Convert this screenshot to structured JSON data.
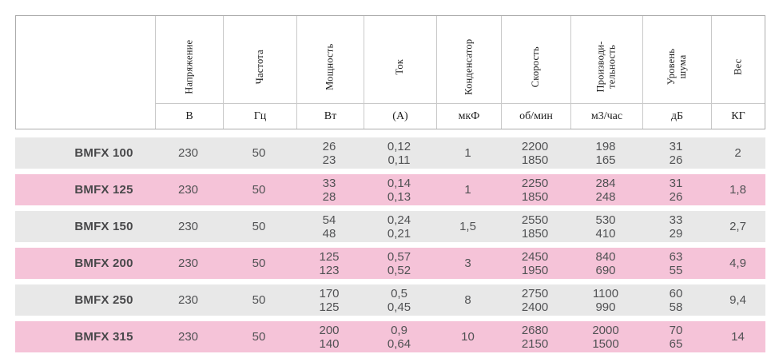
{
  "table": {
    "columns": [
      {
        "header": "",
        "unit": ""
      },
      {
        "header": "Напряжение",
        "unit": "В"
      },
      {
        "header": "Частота",
        "unit": "Гц"
      },
      {
        "header": "Мощность",
        "unit": "Вт"
      },
      {
        "header": "Ток",
        "unit": "(А)"
      },
      {
        "header": "Конденсатор",
        "unit": "мкФ"
      },
      {
        "header": "Скорость",
        "unit": "об/мин"
      },
      {
        "header": "Производи-\nтельность",
        "unit": "м3/час"
      },
      {
        "header": "Уровень\nшума",
        "unit": "дБ"
      },
      {
        "header": "Вес",
        "unit": "КГ"
      }
    ],
    "rows": [
      {
        "model": "BMFX 100",
        "values": [
          "230",
          "50",
          "26\n23",
          "0,12\n0,11",
          "1",
          "2200\n1850",
          "198\n165",
          "31\n26",
          "2"
        ]
      },
      {
        "model": "BMFX 125",
        "values": [
          "230",
          "50",
          "33\n28",
          "0,14\n0,13",
          "1",
          "2250\n1850",
          "284\n248",
          "31\n26",
          "1,8"
        ]
      },
      {
        "model": "BMFX 150",
        "values": [
          "230",
          "50",
          "54\n48",
          "0,24\n0,21",
          "1,5",
          "2550\n1850",
          "530\n410",
          "33\n29",
          "2,7"
        ]
      },
      {
        "model": "BMFX 200",
        "values": [
          "230",
          "50",
          "125\n123",
          "0,57\n0,52",
          "3",
          "2450\n1950",
          "840\n690",
          "63\n55",
          "4,9"
        ]
      },
      {
        "model": "BMFX 250",
        "values": [
          "230",
          "50",
          "170\n125",
          "0,5\n0,45",
          "8",
          "2750\n2400",
          "1100\n990",
          "60\n58",
          "9,4"
        ]
      },
      {
        "model": "BMFX 315",
        "values": [
          "230",
          "50",
          "200\n140",
          "0,9\n0,64",
          "10",
          "2680\n2150",
          "2000\n1500",
          "70\n65",
          "14"
        ]
      }
    ],
    "row_colors": {
      "even": "#e8e8e8",
      "odd": "#f5c3d8"
    },
    "colors": {
      "header_text": "#1e1e1e",
      "data_text": "#515254",
      "model_text": "#48484a",
      "inner_border": "#c9c9c9",
      "outer_border": "#acacac",
      "background": "#ffffff"
    }
  }
}
